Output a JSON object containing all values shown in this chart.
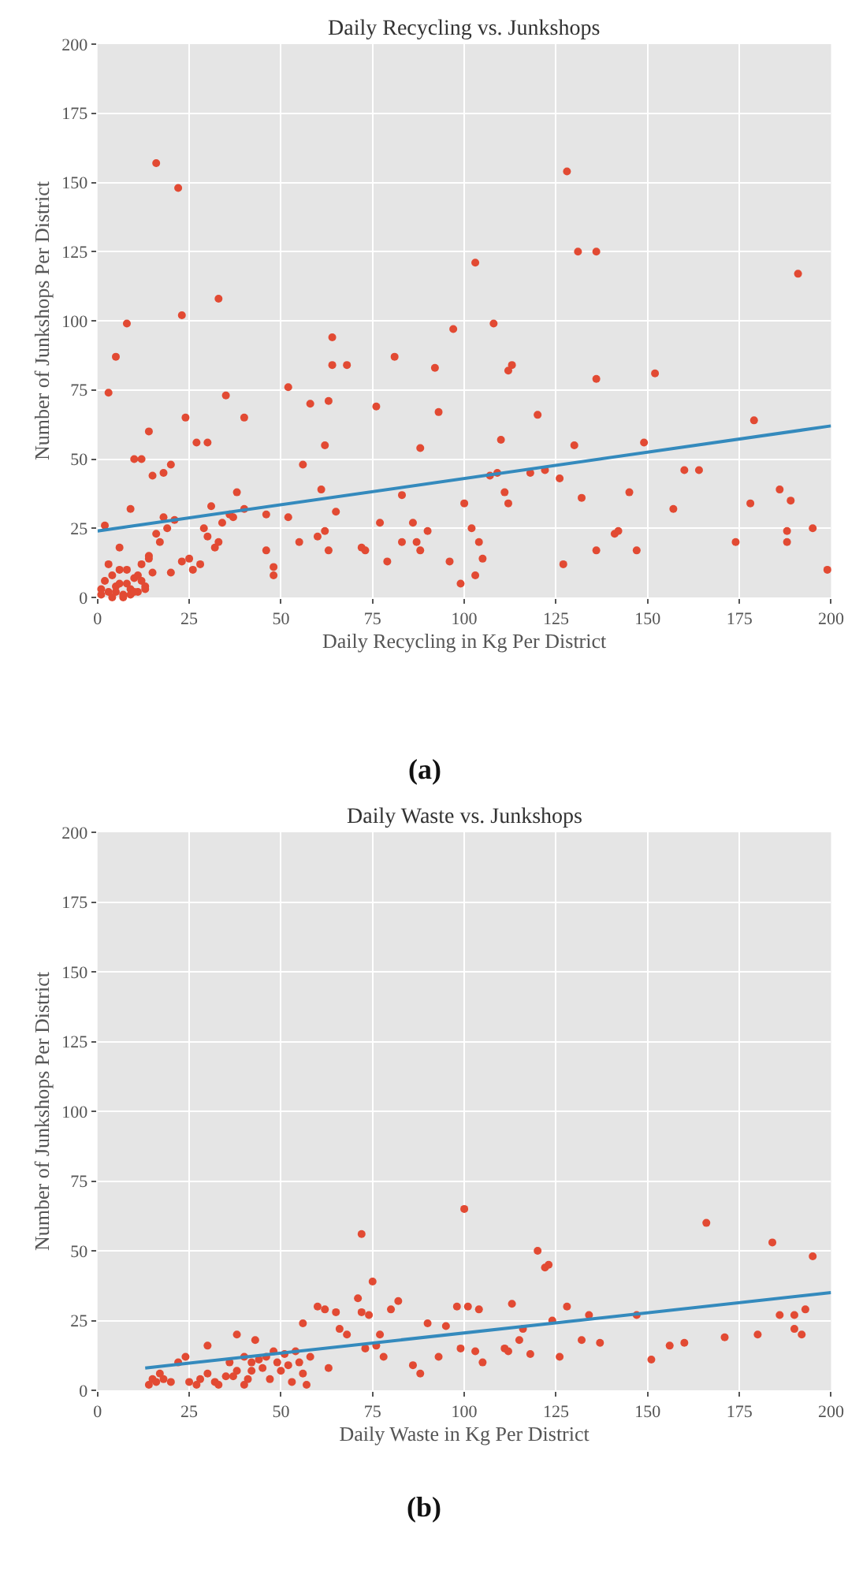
{
  "chart_data": [
    {
      "type": "scatter",
      "title": "Daily Recycling vs. Junkshops",
      "xlabel": "Daily Recycling in Kg Per District",
      "ylabel": "Number of Junkshops Per District",
      "xlim": [
        0,
        200
      ],
      "ylim": [
        0,
        200
      ],
      "xticks": [
        0,
        25,
        50,
        75,
        100,
        125,
        150,
        175,
        200
      ],
      "yticks": [
        0,
        25,
        50,
        75,
        100,
        125,
        150,
        175,
        200
      ],
      "grid": true,
      "annotations": [
        "(a)"
      ],
      "series": [
        {
          "marker": "circle",
          "color": "#e24a33",
          "x": [
            16,
            22,
            33,
            23,
            8,
            5,
            3,
            35,
            24,
            40,
            14,
            27,
            30,
            20,
            15,
            18,
            10,
            12,
            46,
            52,
            64,
            64,
            68,
            63,
            58,
            76,
            103,
            128,
            131,
            136,
            191,
            108,
            97,
            81,
            92,
            113,
            112,
            136,
            152,
            93,
            88,
            120,
            149,
            160,
            164,
            179,
            186,
            189,
            195,
            199,
            188,
            188,
            174,
            178,
            130,
            122,
            118,
            110,
            109,
            107,
            102,
            105,
            103,
            104,
            100,
            112,
            111,
            126,
            127,
            132,
            136,
            141,
            142,
            145,
            147,
            157,
            62,
            61,
            56,
            52,
            48,
            48,
            46,
            55,
            60,
            62,
            63,
            65,
            72,
            73,
            77,
            79,
            83,
            83,
            86,
            87,
            88,
            90,
            96,
            99,
            1,
            2,
            3,
            4,
            5,
            6,
            7,
            8,
            9,
            10,
            11,
            12,
            13,
            14,
            15,
            17,
            19,
            21,
            23,
            1,
            3,
            5,
            7,
            9,
            11,
            13,
            2,
            4,
            6,
            8,
            10,
            12,
            14,
            16,
            18,
            20,
            25,
            28,
            30,
            32,
            34,
            36,
            38,
            40,
            26,
            29,
            31,
            33,
            37,
            9,
            6
          ],
          "values": [
            157,
            148,
            108,
            102,
            99,
            87,
            74,
            73,
            65,
            65,
            60,
            56,
            56,
            48,
            44,
            45,
            50,
            50,
            30,
            76,
            94,
            84,
            84,
            71,
            70,
            69,
            121,
            154,
            125,
            125,
            117,
            99,
            97,
            87,
            83,
            84,
            82,
            79,
            81,
            67,
            54,
            66,
            56,
            46,
            46,
            64,
            39,
            35,
            25,
            10,
            24,
            20,
            20,
            34,
            55,
            46,
            45,
            57,
            45,
            44,
            25,
            14,
            8,
            20,
            34,
            34,
            38,
            43,
            12,
            36,
            17,
            23,
            24,
            38,
            17,
            32,
            55,
            39,
            48,
            29,
            11,
            8,
            17,
            20,
            22,
            24,
            17,
            31,
            18,
            17,
            27,
            13,
            37,
            20,
            27,
            20,
            17,
            24,
            13,
            5,
            3,
            6,
            2,
            8,
            4,
            10,
            1,
            5,
            3,
            7,
            2,
            12,
            4,
            15,
            9,
            20,
            25,
            28,
            13,
            1,
            12,
            2,
            0,
            1,
            8,
            3,
            26,
            0,
            5,
            10,
            2,
            6,
            14,
            23,
            29,
            9,
            14,
            12,
            22,
            18,
            27,
            30,
            38,
            32,
            10,
            25,
            33,
            20,
            29,
            32,
            18
          ]
        },
        {
          "type": "line",
          "color": "#348abd",
          "x": [
            0,
            200
          ],
          "values": [
            24,
            62
          ]
        }
      ]
    },
    {
      "type": "scatter",
      "title": "Daily Waste vs. Junkshops",
      "xlabel": "Daily Waste in Kg Per District",
      "ylabel": "Number of Junkshops Per District",
      "xlim": [
        0,
        200
      ],
      "ylim": [
        0,
        200
      ],
      "xticks": [
        0,
        25,
        50,
        75,
        100,
        125,
        150,
        175,
        200
      ],
      "yticks": [
        0,
        25,
        50,
        75,
        100,
        125,
        150,
        175,
        200
      ],
      "grid": true,
      "annotations": [
        "(b)"
      ],
      "series": [
        {
          "marker": "circle",
          "color": "#e24a33",
          "x": [
            14,
            15,
            16,
            17,
            18,
            20,
            22,
            24,
            25,
            27,
            28,
            30,
            30,
            32,
            33,
            35,
            36,
            37,
            38,
            38,
            40,
            40,
            41,
            42,
            42,
            43,
            44,
            45,
            46,
            47,
            48,
            49,
            50,
            51,
            52,
            53,
            54,
            55,
            56,
            56,
            57,
            58,
            60,
            62,
            63,
            65,
            66,
            68,
            71,
            72,
            72,
            73,
            74,
            75,
            76,
            77,
            78,
            80,
            82,
            86,
            88,
            90,
            93,
            95,
            98,
            99,
            100,
            101,
            103,
            104,
            105,
            111,
            112,
            113,
            115,
            116,
            118,
            120,
            122,
            123,
            124,
            126,
            128,
            132,
            134,
            137,
            147,
            151,
            156,
            160,
            166,
            171,
            180,
            184,
            186,
            190,
            190,
            192,
            193,
            195
          ],
          "values": [
            2,
            4,
            3,
            6,
            4,
            3,
            10,
            12,
            3,
            2,
            4,
            6,
            16,
            3,
            2,
            5,
            10,
            5,
            7,
            20,
            2,
            12,
            4,
            10,
            7,
            18,
            11,
            8,
            12,
            4,
            14,
            10,
            7,
            13,
            9,
            3,
            14,
            10,
            24,
            6,
            2,
            12,
            30,
            29,
            8,
            28,
            22,
            20,
            33,
            56,
            28,
            15,
            27,
            39,
            16,
            20,
            12,
            29,
            32,
            9,
            6,
            24,
            12,
            23,
            30,
            15,
            65,
            30,
            14,
            29,
            10,
            15,
            14,
            31,
            18,
            22,
            13,
            50,
            44,
            45,
            25,
            12,
            30,
            18,
            27,
            17,
            27,
            11,
            16,
            17,
            60,
            19,
            20,
            53,
            27,
            27,
            22,
            20,
            29,
            48
          ]
        },
        {
          "type": "line",
          "color": "#348abd",
          "x": [
            13,
            200
          ],
          "values": [
            8,
            35
          ]
        }
      ]
    }
  ]
}
